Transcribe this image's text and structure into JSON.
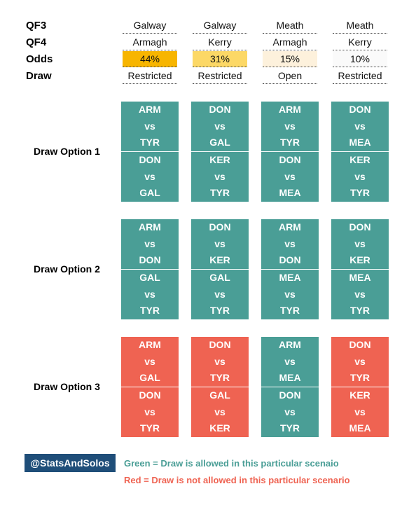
{
  "header": {
    "labels": [
      "QF3",
      "QF4",
      "Odds",
      "Draw"
    ],
    "rows": [
      [
        "Galway",
        "Galway",
        "Meath",
        "Meath"
      ],
      [
        "Armagh",
        "Kerry",
        "Armagh",
        "Kerry"
      ],
      [
        "44%",
        "31%",
        "15%",
        "10%"
      ],
      [
        "Restricted",
        "Restricted",
        "Open",
        "Restricted"
      ]
    ]
  },
  "options": [
    {
      "label": "Draw Option 1",
      "columns": [
        {
          "color": "#4a9e96",
          "matches": [
            [
              "ARM",
              "vs",
              "TYR"
            ],
            [
              "DON",
              "vs",
              "GAL"
            ]
          ]
        },
        {
          "color": "#4a9e96",
          "matches": [
            [
              "DON",
              "vs",
              "GAL"
            ],
            [
              "KER",
              "vs",
              "TYR"
            ]
          ]
        },
        {
          "color": "#4a9e96",
          "matches": [
            [
              "ARM",
              "vs",
              "TYR"
            ],
            [
              "DON",
              "vs",
              "MEA"
            ]
          ]
        },
        {
          "color": "#4a9e96",
          "matches": [
            [
              "DON",
              "vs",
              "MEA"
            ],
            [
              "KER",
              "vs",
              "TYR"
            ]
          ]
        }
      ]
    },
    {
      "label": "Draw Option 2",
      "columns": [
        {
          "color": "#4a9e96",
          "matches": [
            [
              "ARM",
              "vs",
              "DON"
            ],
            [
              "GAL",
              "vs",
              "TYR"
            ]
          ]
        },
        {
          "color": "#4a9e96",
          "matches": [
            [
              "DON",
              "vs",
              "KER"
            ],
            [
              "GAL",
              "vs",
              "TYR"
            ]
          ]
        },
        {
          "color": "#4a9e96",
          "matches": [
            [
              "ARM",
              "vs",
              "DON"
            ],
            [
              "MEA",
              "vs",
              "TYR"
            ]
          ]
        },
        {
          "color": "#4a9e96",
          "matches": [
            [
              "DON",
              "vs",
              "KER"
            ],
            [
              "MEA",
              "vs",
              "TYR"
            ]
          ]
        }
      ]
    },
    {
      "label": "Draw Option 3",
      "columns": [
        {
          "color": "#ef6352",
          "matches": [
            [
              "ARM",
              "vs",
              "GAL"
            ],
            [
              "DON",
              "vs",
              "TYR"
            ]
          ]
        },
        {
          "color": "#ef6352",
          "matches": [
            [
              "DON",
              "vs",
              "TYR"
            ],
            [
              "GAL",
              "vs",
              "KER"
            ]
          ]
        },
        {
          "color": "#4a9e96",
          "matches": [
            [
              "ARM",
              "vs",
              "MEA"
            ],
            [
              "DON",
              "vs",
              "TYR"
            ]
          ]
        },
        {
          "color": "#ef6352",
          "matches": [
            [
              "DON",
              "vs",
              "TYR"
            ],
            [
              "KER",
              "vs",
              "MEA"
            ]
          ]
        }
      ]
    }
  ],
  "footer": {
    "handle": "@StatsAndSolos",
    "green": "Green = Draw is allowed in this particular scenaio",
    "red": "Red = Draw is not allowed in this particular scenario"
  }
}
